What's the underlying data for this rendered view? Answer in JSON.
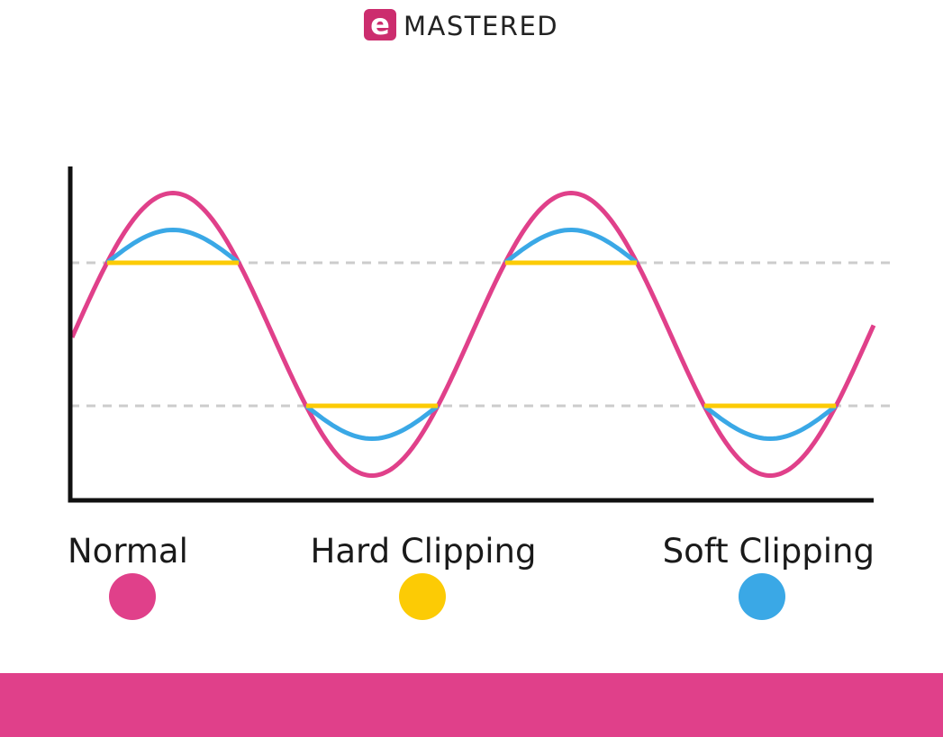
{
  "logo": {
    "icon": "e",
    "text": "MASTERED"
  },
  "legend": [
    {
      "label": "Normal",
      "color": "#e0408a"
    },
    {
      "label": "Hard Clipping",
      "color": "#fccb05"
    },
    {
      "label": "Soft Clipping",
      "color": "#3aa8e6"
    }
  ]
}
